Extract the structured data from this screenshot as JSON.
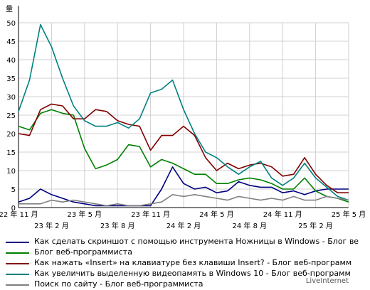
{
  "chart_data": {
    "type": "line",
    "title": "",
    "xlabel": "",
    "ylabel": "",
    "y_unit_label": "量",
    "ylim": [
      0,
      50
    ],
    "y_ticks": [
      0,
      5,
      10,
      15,
      20,
      25,
      30,
      35,
      40,
      45,
      50
    ],
    "grid": true,
    "legend_position": "bottom",
    "x_tick_labels": [
      {
        "label": "22 年 11 月",
        "index": 0,
        "row": 1
      },
      {
        "label": "23 年 2 月",
        "index": 3,
        "row": 2
      },
      {
        "label": "23 年 5 月",
        "index": 6,
        "row": 1
      },
      {
        "label": "23 年 8 月",
        "index": 9,
        "row": 2
      },
      {
        "label": "23 年 11 月",
        "index": 12,
        "row": 1
      },
      {
        "label": "24 年 2 月",
        "index": 15,
        "row": 2
      },
      {
        "label": "24 年 5 月",
        "index": 18,
        "row": 1
      },
      {
        "label": "24 年 8 月",
        "index": 21,
        "row": 2
      },
      {
        "label": "24 年 11 月",
        "index": 24,
        "row": 1
      },
      {
        "label": "25 年 2 月",
        "index": 27,
        "row": 2
      },
      {
        "label": "25 年 5 月",
        "index": 30,
        "row": 1
      }
    ],
    "series": [
      {
        "name": "Как сделать скриншот с помощью инструмента Ножницы в Windows - Блог ве",
        "color": "#000080",
        "values": [
          1.5,
          2.5,
          5,
          3.5,
          2.5,
          1.5,
          1,
          0.5,
          0.5,
          0.5,
          0.5,
          0.5,
          0.5,
          5,
          11,
          6.5,
          5,
          5.5,
          4,
          4.5,
          7,
          6,
          5.5,
          5.5,
          4,
          4.5,
          3.5,
          4.5,
          5,
          5,
          5
        ]
      },
      {
        "name": "Блог веб-программиста",
        "color": "#008000",
        "values": [
          22,
          21,
          25.5,
          26.5,
          25.5,
          25,
          16,
          10.5,
          11.5,
          13,
          17,
          16.5,
          11,
          13,
          12,
          10.5,
          9,
          9,
          6.5,
          6.5,
          7.5,
          8,
          7.5,
          6.5,
          5,
          5,
          8,
          4.5,
          3,
          2.5,
          1.5
        ]
      },
      {
        "name": "Как нажать «Insert» на клавиатуре без клавиши Insert? - Блог веб-программ",
        "color": "#800000",
        "values": [
          20,
          19.5,
          26.5,
          28,
          27.5,
          24,
          24,
          26.5,
          26,
          23.5,
          22.5,
          22,
          15.5,
          19.5,
          19.5,
          22,
          19.5,
          13.5,
          10,
          12,
          10.5,
          11.5,
          12,
          11,
          8.5,
          9,
          13.5,
          9,
          6,
          4,
          4
        ]
      },
      {
        "name": "Как увеличить выделенную видеопамять в Windows 10 - Блог веб-программ",
        "color": "#008080",
        "values": [
          26,
          34.5,
          49.5,
          43.5,
          35,
          27.5,
          23.5,
          22,
          22,
          23,
          21.5,
          24,
          31,
          32,
          34.5,
          26.5,
          20,
          15,
          13.5,
          11,
          9,
          11,
          12.5,
          8,
          6,
          8,
          12,
          8,
          5.5,
          3,
          2
        ]
      },
      {
        "name": "Поиск по сайту - Блог веб-программиста",
        "color": "#808080",
        "values": [
          1,
          1,
          1,
          2,
          1.5,
          2,
          1.5,
          1,
          0.5,
          1,
          0.5,
          0.5,
          1,
          1.5,
          3.5,
          3,
          3.5,
          3,
          2.5,
          2,
          3,
          2.5,
          2,
          2.5,
          2,
          3,
          2,
          2,
          3,
          2.5,
          2
        ]
      }
    ]
  },
  "footer": {
    "brand": "LiveInternet"
  }
}
